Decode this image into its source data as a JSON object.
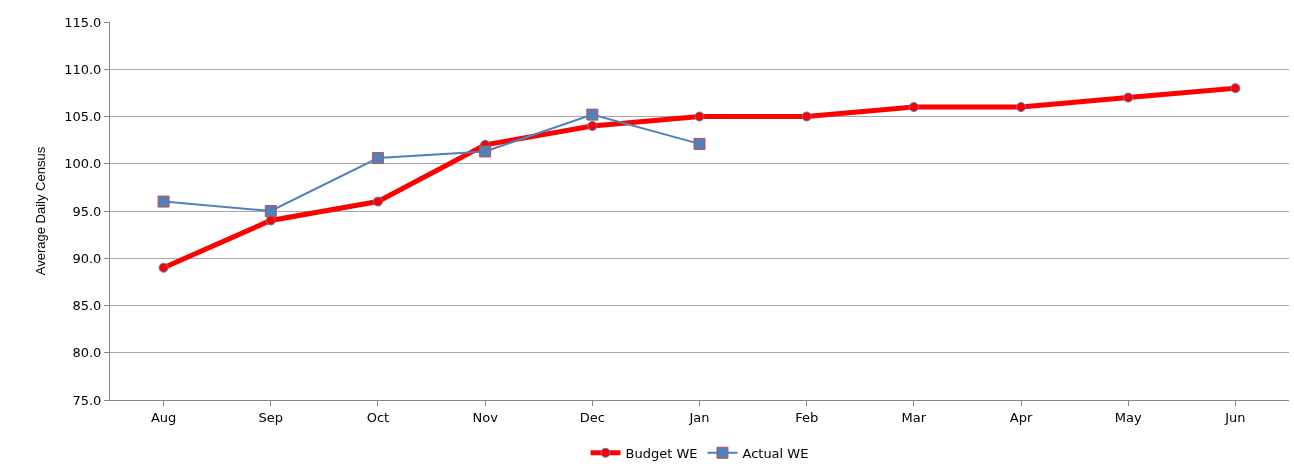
{
  "chart_data": {
    "type": "line",
    "ylabel": "Average Daily Census",
    "categories": [
      "Aug",
      "Sep",
      "Oct",
      "Nov",
      "Dec",
      "Jan",
      "Feb",
      "Mar",
      "Apr",
      "May",
      "Jun"
    ],
    "series": [
      {
        "name": "Budget WE",
        "color": "#ff0000",
        "marker": "circle",
        "values": [
          89,
          94,
          96,
          102,
          104,
          105,
          105,
          106,
          106,
          107,
          108
        ]
      },
      {
        "name": "Actual WE",
        "color": "#4f81bd",
        "marker": "square",
        "values": [
          96,
          95,
          100.6,
          101.3,
          105.2,
          102.1,
          null,
          null,
          null,
          null,
          null
        ]
      }
    ],
    "ylim": [
      75,
      115
    ],
    "yticks": [
      {
        "value": 75,
        "label": "75.0"
      },
      {
        "value": 80,
        "label": "80.0"
      },
      {
        "value": 85,
        "label": "85.0"
      },
      {
        "value": 90,
        "label": "90.0"
      },
      {
        "value": 95,
        "label": "95.0"
      },
      {
        "value": 100,
        "label": "100.0"
      },
      {
        "value": 105,
        "label": "105.0"
      },
      {
        "value": 110,
        "label": "110.0"
      },
      {
        "value": 115,
        "label": "115.0"
      }
    ],
    "grid": "y",
    "legend": "bottom"
  }
}
